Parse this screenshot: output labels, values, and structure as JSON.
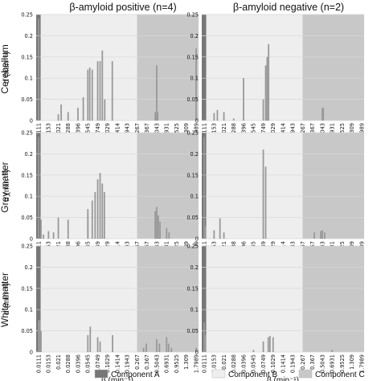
{
  "chart_data": {
    "type": "bar",
    "column_titles": [
      "β-amyloid positive (n=4)",
      "β-amyloid negative (n=2)"
    ],
    "row_labels": [
      "Cerebellum",
      "Grey matter",
      "White matter"
    ],
    "ylabel": "α (min⁻¹)",
    "xlabel": "β (min⁻¹)",
    "ylim": [
      0,
      0.25
    ],
    "yticks": [
      "0",
      "0.05",
      "0.1",
      "0.15",
      "0.2",
      "0.25"
    ],
    "beta_range": [
      0.0111,
      1.7989
    ],
    "x_scale": "log",
    "x_tick_labels": [
      "0.0111",
      "0.0153",
      "0.021",
      "0.0288",
      "0.0396",
      "0.0545",
      "0.0749",
      "0.1029",
      "0.1414",
      "0.1943",
      "0.267",
      "0.367",
      "0.5043",
      "0.6931",
      "0.9525",
      "1.309",
      "1.7989"
    ],
    "grid": "horizontal",
    "shaded_regions": [
      {
        "component": "Component A",
        "from": 0.0111,
        "to": 0.0119,
        "color": "#777777"
      },
      {
        "component": "Component B",
        "from": 0.0119,
        "to": 0.267,
        "color": "#eeeeee"
      },
      {
        "component": "Component C",
        "from": 0.267,
        "to": 1.7989,
        "color": "#c8c8c8"
      }
    ],
    "bar_color": "#999999",
    "legend": [
      "Component A",
      "Component B",
      "Component C"
    ],
    "legend_position": "bottom",
    "panels": [
      {
        "row": "Cerebellum",
        "column": "β-amyloid positive (n=4)",
        "bars": [
          [
            0.0111,
            0.24
          ],
          [
            0.021,
            0.015
          ],
          [
            0.023,
            0.038
          ],
          [
            0.0288,
            0.02
          ],
          [
            0.0396,
            0.03
          ],
          [
            0.047,
            0.055
          ],
          [
            0.0545,
            0.12
          ],
          [
            0.058,
            0.125
          ],
          [
            0.0628,
            0.12
          ],
          [
            0.0749,
            0.14
          ],
          [
            0.0809,
            0.14
          ],
          [
            0.087,
            0.165
          ],
          [
            0.094,
            0.05
          ],
          [
            0.12,
            0.14
          ],
          [
            0.48,
            0.02
          ],
          [
            0.5043,
            0.13
          ],
          [
            0.52,
            0.02
          ],
          [
            1.7989,
            0.17
          ]
        ]
      },
      {
        "row": "Cerebellum",
        "column": "β-amyloid negative (n=2)",
        "bars": [
          [
            0.0153,
            0.018
          ],
          [
            0.017,
            0.025
          ],
          [
            0.021,
            0.02
          ],
          [
            0.0288,
            0.005
          ],
          [
            0.0396,
            0.1
          ],
          [
            0.0749,
            0.05
          ],
          [
            0.0809,
            0.13
          ],
          [
            0.085,
            0.15
          ],
          [
            0.0889,
            0.18
          ],
          [
            0.5043,
            0.03
          ],
          [
            0.52,
            0.03
          ]
        ]
      },
      {
        "row": "Grey matter",
        "column": "β-amyloid positive (n=4)",
        "bars": [
          [
            0.0111,
            0.24
          ],
          [
            0.012,
            0.045
          ],
          [
            0.013,
            0.01
          ],
          [
            0.0153,
            0.018
          ],
          [
            0.018,
            0.015
          ],
          [
            0.021,
            0.05
          ],
          [
            0.0288,
            0.045
          ],
          [
            0.0545,
            0.05
          ],
          [
            0.0628,
            0.09
          ],
          [
            0.0689,
            0.11
          ],
          [
            0.0749,
            0.14
          ],
          [
            0.0809,
            0.155
          ],
          [
            0.0869,
            0.13
          ],
          [
            0.0929,
            0.11
          ],
          [
            0.0545,
            0.07
          ],
          [
            0.48,
            0.065
          ],
          [
            0.5043,
            0.075
          ],
          [
            0.53,
            0.055
          ],
          [
            0.56,
            0.04
          ],
          [
            0.6931,
            0.025
          ],
          [
            0.75,
            0.015
          ]
        ]
      },
      {
        "row": "Grey matter",
        "column": "β-amyloid negative (n=2)",
        "bars": [
          [
            0.0111,
            0.24
          ],
          [
            0.0115,
            0.03
          ],
          [
            0.0153,
            0.02
          ],
          [
            0.0185,
            0.048
          ],
          [
            0.021,
            0.015
          ],
          [
            0.0749,
            0.21
          ],
          [
            0.0809,
            0.17
          ],
          [
            0.3893,
            0.015
          ],
          [
            0.48,
            0.018
          ],
          [
            0.5043,
            0.02
          ],
          [
            0.5443,
            0.015
          ]
        ]
      },
      {
        "row": "White matter",
        "column": "β-amyloid positive (n=4)",
        "bars": [
          [
            0.0111,
            0.075
          ],
          [
            0.0115,
            0.075
          ],
          [
            0.012,
            0.05
          ],
          [
            0.0545,
            0.04
          ],
          [
            0.0589,
            0.06
          ],
          [
            0.0749,
            0.035
          ],
          [
            0.0809,
            0.025
          ],
          [
            0.1212,
            0.04
          ],
          [
            0.33,
            0.01
          ],
          [
            0.36,
            0.02
          ],
          [
            0.5043,
            0.03
          ],
          [
            0.55,
            0.02
          ],
          [
            0.6931,
            0.035
          ],
          [
            0.74,
            0.02
          ],
          [
            0.81,
            0.01
          ],
          [
            1.7989,
            0.01
          ]
        ]
      },
      {
        "row": "White matter",
        "column": "β-amyloid negative (n=2)",
        "bars": [
          [
            0.0111,
            0.07
          ],
          [
            0.0115,
            0.04
          ],
          [
            0.0545,
            0.005
          ],
          [
            0.0749,
            0.025
          ],
          [
            0.088,
            0.035
          ],
          [
            0.0929,
            0.038
          ],
          [
            0.1029,
            0.035
          ],
          [
            0.6931,
            0.005
          ]
        ]
      }
    ]
  }
}
